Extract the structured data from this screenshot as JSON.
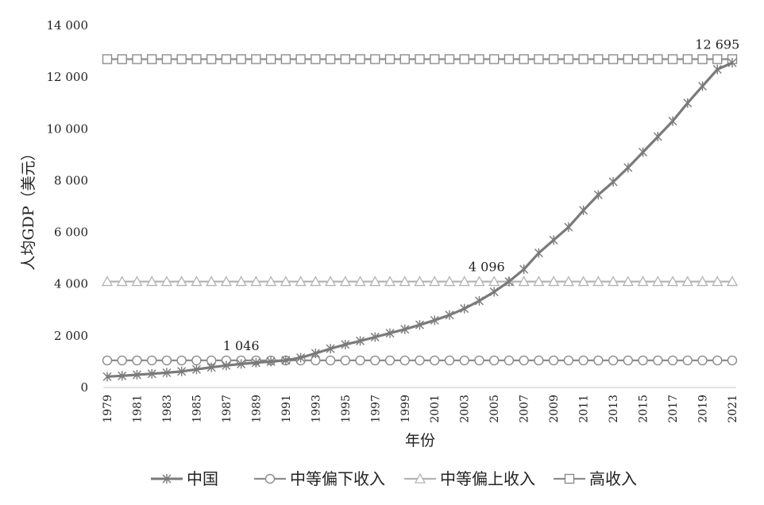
{
  "chart_data": {
    "type": "line",
    "xlabel": "年份",
    "ylabel": "人均GDP（美元）",
    "ylim": [
      0,
      14000
    ],
    "yticks": [
      0,
      2000,
      4000,
      6000,
      8000,
      10000,
      12000,
      14000
    ],
    "ytick_labels": [
      "0",
      "2 000",
      "4 000",
      "6 000",
      "8 000",
      "10 000",
      "12 000",
      "14 000"
    ],
    "x": [
      1979,
      1980,
      1981,
      1982,
      1983,
      1984,
      1985,
      1986,
      1987,
      1988,
      1989,
      1990,
      1991,
      1992,
      1993,
      1994,
      1995,
      1996,
      1997,
      1998,
      1999,
      2000,
      2001,
      2002,
      2003,
      2004,
      2005,
      2006,
      2007,
      2008,
      2009,
      2010,
      2011,
      2012,
      2013,
      2014,
      2015,
      2016,
      2017,
      2018,
      2019,
      2020,
      2021
    ],
    "xtick_labels": [
      "1979",
      "1981",
      "1983",
      "1985",
      "1987",
      "1989",
      "1991",
      "1993",
      "1995",
      "1997",
      "1999",
      "2001",
      "2003",
      "2005",
      "2007",
      "2009",
      "2011",
      "2013",
      "2015",
      "2017",
      "2019",
      "2021"
    ],
    "grid": false,
    "legend": "bottom",
    "series": [
      {
        "name": "中国",
        "marker": "asterisk",
        "color": "#7a7a7a",
        "values": [
          420,
          450,
          490,
          530,
          570,
          620,
          700,
          780,
          850,
          910,
          960,
          1000,
          1050,
          1150,
          1320,
          1500,
          1660,
          1800,
          1950,
          2100,
          2250,
          2420,
          2600,
          2800,
          3050,
          3350,
          3700,
          4096,
          4570,
          5200,
          5700,
          6200,
          6850,
          7450,
          7950,
          8500,
          9100,
          9700,
          10300,
          11000,
          11650,
          12300,
          12556
        ]
      },
      {
        "name": "中等偏下收入",
        "marker": "circle",
        "color": "#8c8c8c",
        "values": [
          1046,
          1046,
          1046,
          1046,
          1046,
          1046,
          1046,
          1046,
          1046,
          1046,
          1046,
          1046,
          1046,
          1046,
          1046,
          1046,
          1046,
          1046,
          1046,
          1046,
          1046,
          1046,
          1046,
          1046,
          1046,
          1046,
          1046,
          1046,
          1046,
          1046,
          1046,
          1046,
          1046,
          1046,
          1046,
          1046,
          1046,
          1046,
          1046,
          1046,
          1046,
          1046,
          1046
        ]
      },
      {
        "name": "中等偏上收入",
        "marker": "triangle",
        "color": "#b3b3b3",
        "values": [
          4096,
          4096,
          4096,
          4096,
          4096,
          4096,
          4096,
          4096,
          4096,
          4096,
          4096,
          4096,
          4096,
          4096,
          4096,
          4096,
          4096,
          4096,
          4096,
          4096,
          4096,
          4096,
          4096,
          4096,
          4096,
          4096,
          4096,
          4096,
          4096,
          4096,
          4096,
          4096,
          4096,
          4096,
          4096,
          4096,
          4096,
          4096,
          4096,
          4096,
          4096,
          4096,
          4096
        ]
      },
      {
        "name": "高收入",
        "marker": "square",
        "color": "#8c8c8c",
        "values": [
          12695,
          12695,
          12695,
          12695,
          12695,
          12695,
          12695,
          12695,
          12695,
          12695,
          12695,
          12695,
          12695,
          12695,
          12695,
          12695,
          12695,
          12695,
          12695,
          12695,
          12695,
          12695,
          12695,
          12695,
          12695,
          12695,
          12695,
          12695,
          12695,
          12695,
          12695,
          12695,
          12695,
          12695,
          12695,
          12695,
          12695,
          12695,
          12695,
          12695,
          12695,
          12695,
          12695
        ]
      }
    ],
    "annotations": [
      {
        "text": "1 046",
        "x": 1988,
        "y": 1046
      },
      {
        "text": "4 096",
        "x": 2004.5,
        "y": 4096
      },
      {
        "text": "12 695",
        "x": 2020,
        "y": 12695
      }
    ]
  }
}
